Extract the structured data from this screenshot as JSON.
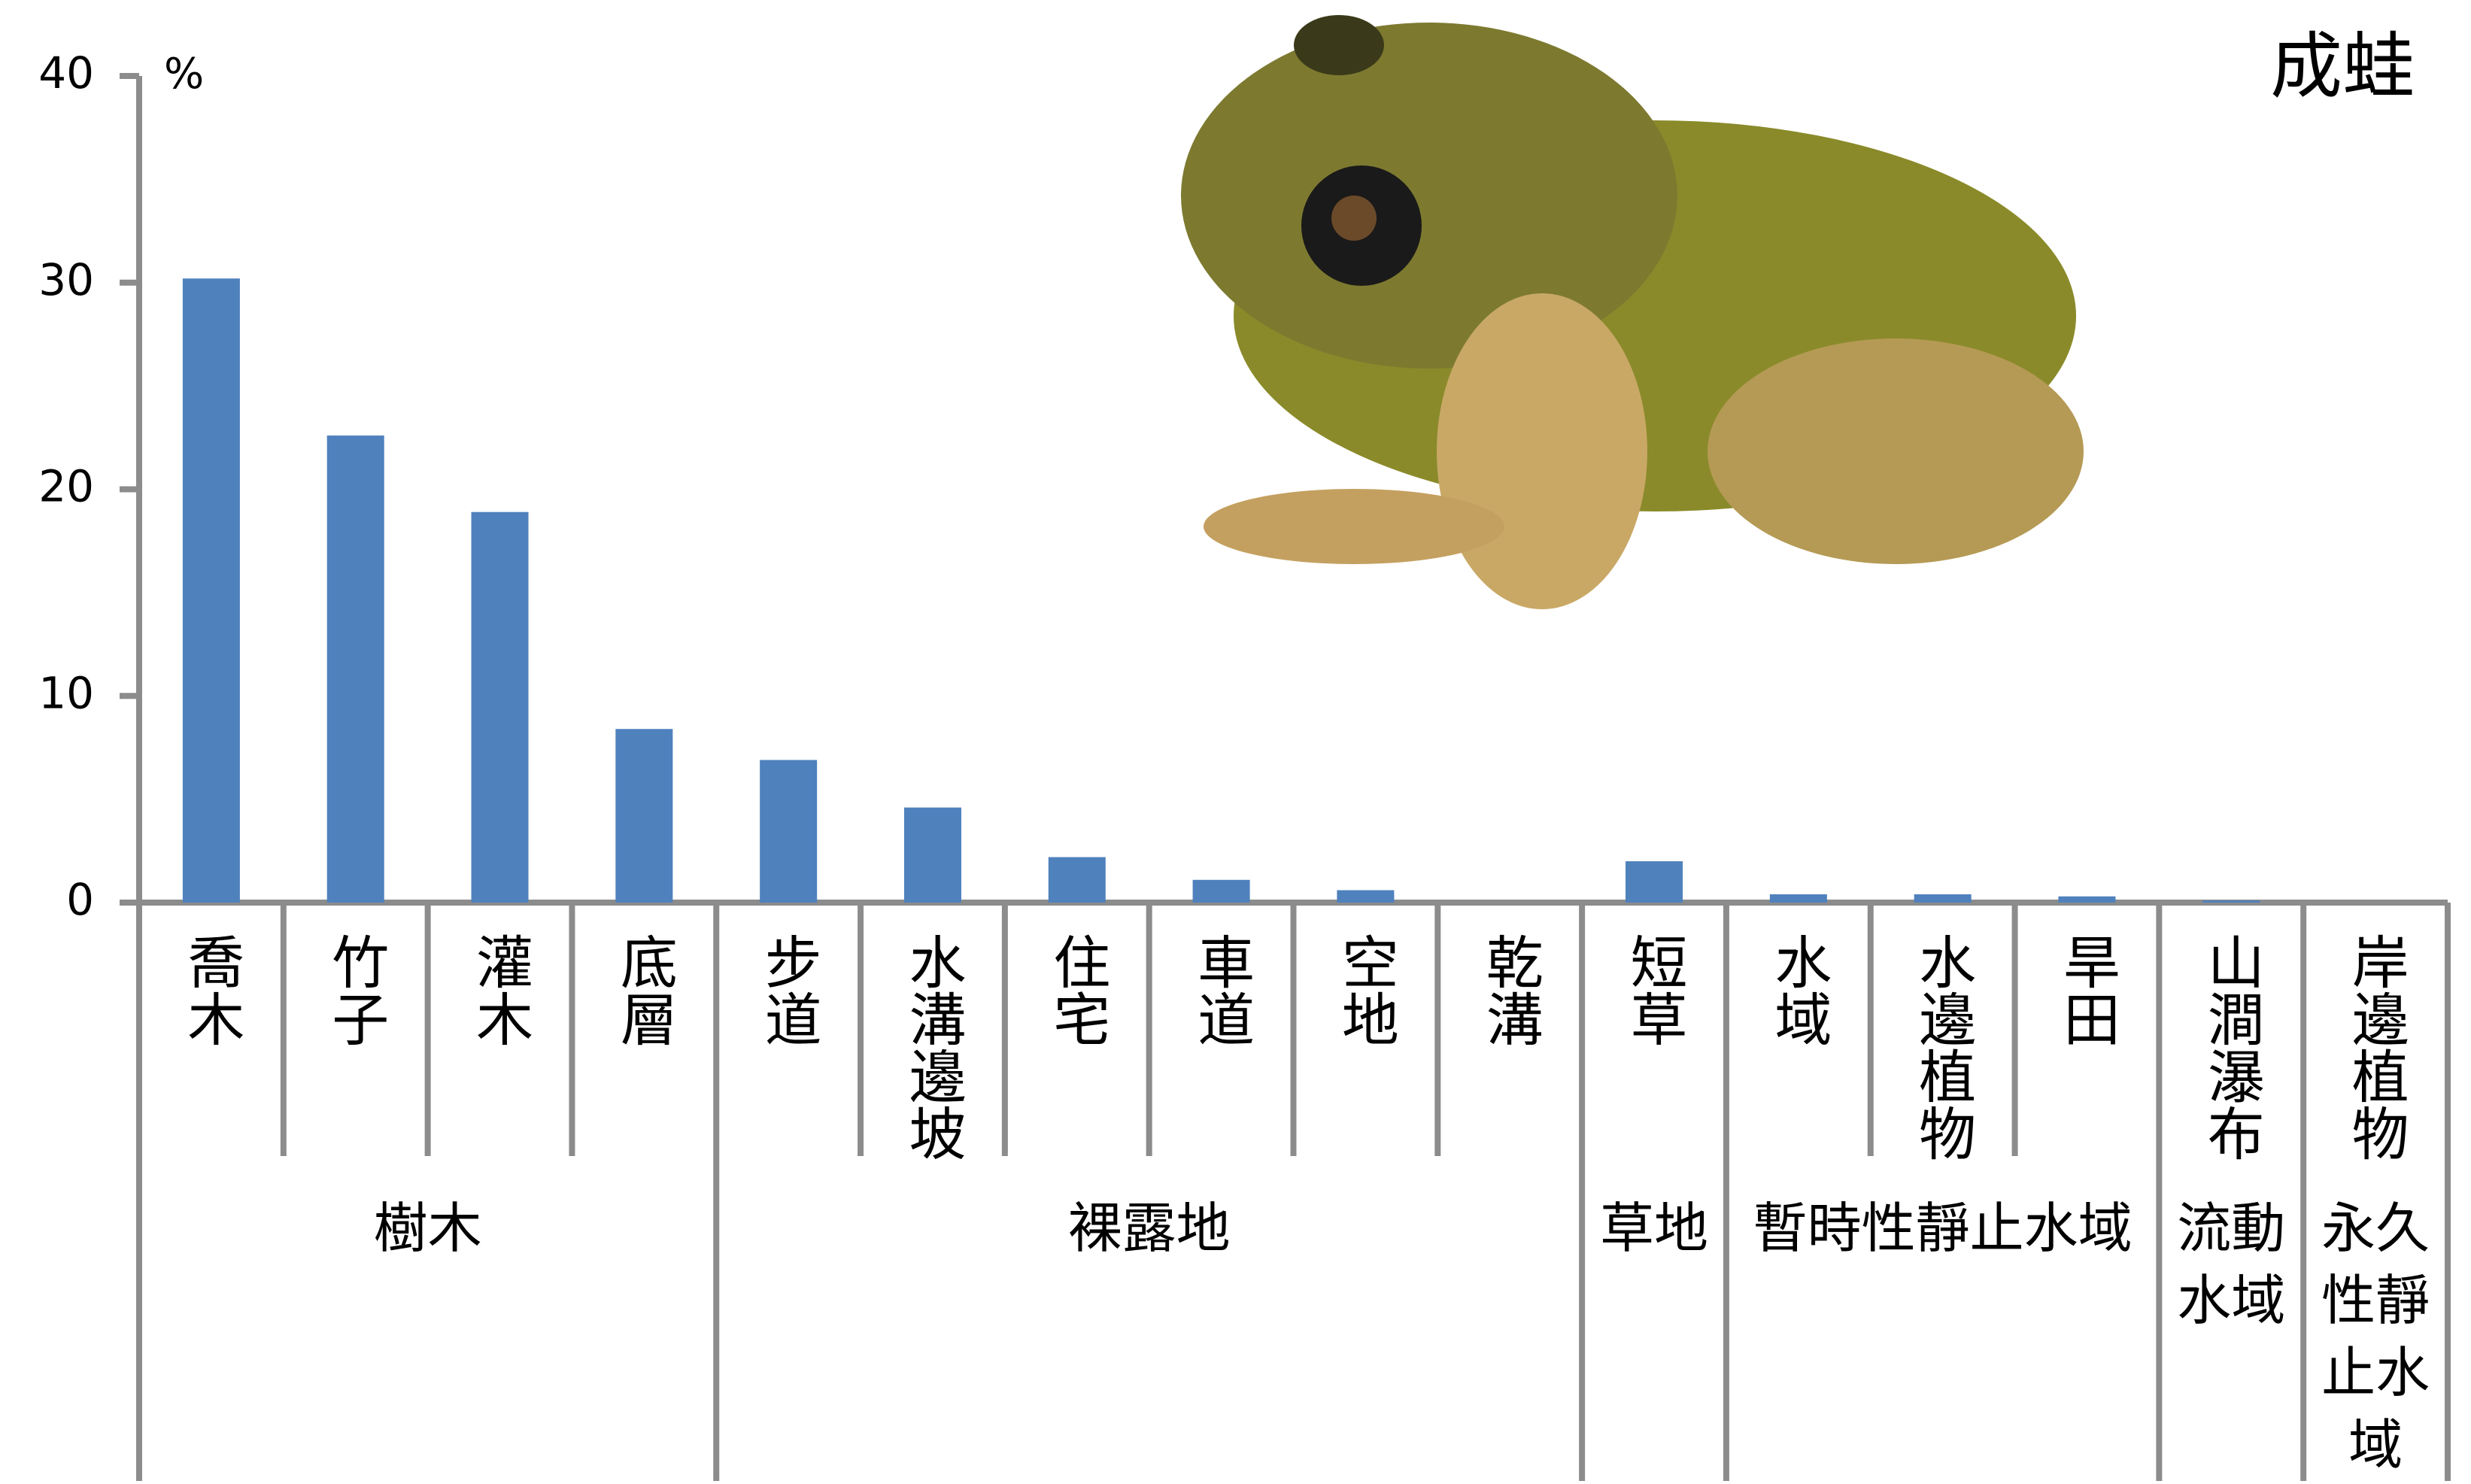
{
  "chart_data": {
    "type": "bar",
    "title": "成蛙",
    "y_unit": "%",
    "color": "#4f81bd",
    "ylim": [
      0,
      40
    ],
    "yticks": [
      0,
      10,
      20,
      30,
      40
    ],
    "groups": [
      {
        "name": "樹木",
        "categories": [
          "喬木",
          "竹子",
          "灌木",
          "底層"
        ],
        "values": [
          30.2,
          22.6,
          18.9,
          8.4
        ]
      },
      {
        "name": "裸露地",
        "categories": [
          "步道",
          "水溝邊坡",
          "住宅",
          "車道",
          "空地",
          "乾溝"
        ],
        "values": [
          6.9,
          4.6,
          2.2,
          1.1,
          0.6,
          0
        ]
      },
      {
        "name": "草地",
        "categories": [
          "短草"
        ],
        "values": [
          2.0
        ]
      },
      {
        "name": "暫時性靜止水域",
        "categories": [
          "水域",
          "水邊植物",
          "旱田"
        ],
        "values": [
          0.4,
          0.4,
          0.3
        ]
      },
      {
        "name": "流動水域",
        "categories": [
          "山澗瀑布"
        ],
        "values": [
          0.1
        ]
      },
      {
        "name": "永久性靜止水域",
        "categories": [
          "岸邊植物"
        ],
        "values": [
          0
        ]
      }
    ]
  }
}
